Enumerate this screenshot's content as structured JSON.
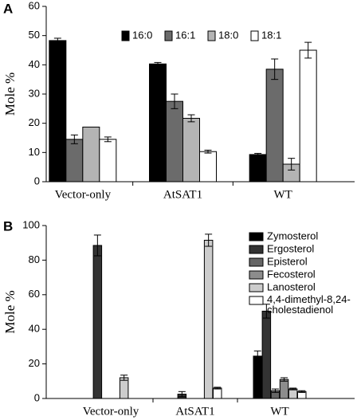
{
  "chart_data": [
    {
      "type": "bar",
      "label": "A",
      "ylabel": "Mole %",
      "categories": [
        "Vector-only",
        "AtSAT1",
        "WT"
      ],
      "ylim": [
        0,
        60
      ],
      "yticks": [
        0,
        10,
        20,
        30,
        40,
        50,
        60
      ],
      "legend": "top-center",
      "series": [
        {
          "name": "16:0",
          "color": "#000000",
          "values": [
            48.3,
            40.3,
            9.3
          ],
          "errors": [
            0.8,
            0.5,
            0.4
          ]
        },
        {
          "name": "16:1",
          "color": "#6b6b6b",
          "values": [
            14.5,
            27.5,
            38.5
          ],
          "errors": [
            1.5,
            2.5,
            3.5
          ]
        },
        {
          "name": "18:0",
          "color": "#b4b4b4",
          "values": [
            18.7,
            21.7,
            6
          ],
          "errors": [
            null,
            1.2,
            2
          ]
        },
        {
          "name": "18:1",
          "color": "#ffffff",
          "values": [
            14.5,
            10.3,
            45
          ],
          "errors": [
            0.8,
            0.5,
            2.7
          ]
        }
      ]
    },
    {
      "type": "bar",
      "label": "B",
      "ylabel": "Mole %",
      "categories": [
        "Vector-only",
        "AtSAT1",
        "WT"
      ],
      "ylim": [
        0,
        100
      ],
      "yticks": [
        0,
        20,
        40,
        60,
        80,
        100
      ],
      "legend": "top-right",
      "series": [
        {
          "name": "Zymosterol",
          "color": "#000000",
          "values": [
            0,
            0,
            24.5
          ],
          "errors": [
            null,
            null,
            3
          ]
        },
        {
          "name": "Ergosterol",
          "color": "#333333",
          "values": [
            88.5,
            2.5,
            50.5
          ],
          "errors": [
            6,
            1.5,
            4
          ]
        },
        {
          "name": "Episterol",
          "color": "#666666",
          "values": [
            0,
            0,
            4.5
          ],
          "errors": [
            null,
            null,
            1
          ]
        },
        {
          "name": "Fecosterol",
          "color": "#8c8c8c",
          "values": [
            0,
            0,
            11
          ],
          "errors": [
            null,
            null,
            1
          ]
        },
        {
          "name": "Lanosterol",
          "color": "#cccccc",
          "values": [
            12,
            91.5,
            5.5
          ],
          "errors": [
            1.5,
            3.5,
            0.5
          ]
        },
        {
          "name": "4,4-dimethyl-8,24-cholestadienol",
          "color": "#ffffff",
          "values": [
            0,
            6,
            4
          ],
          "errors": [
            null,
            0.5,
            0.5
          ]
        }
      ]
    }
  ]
}
